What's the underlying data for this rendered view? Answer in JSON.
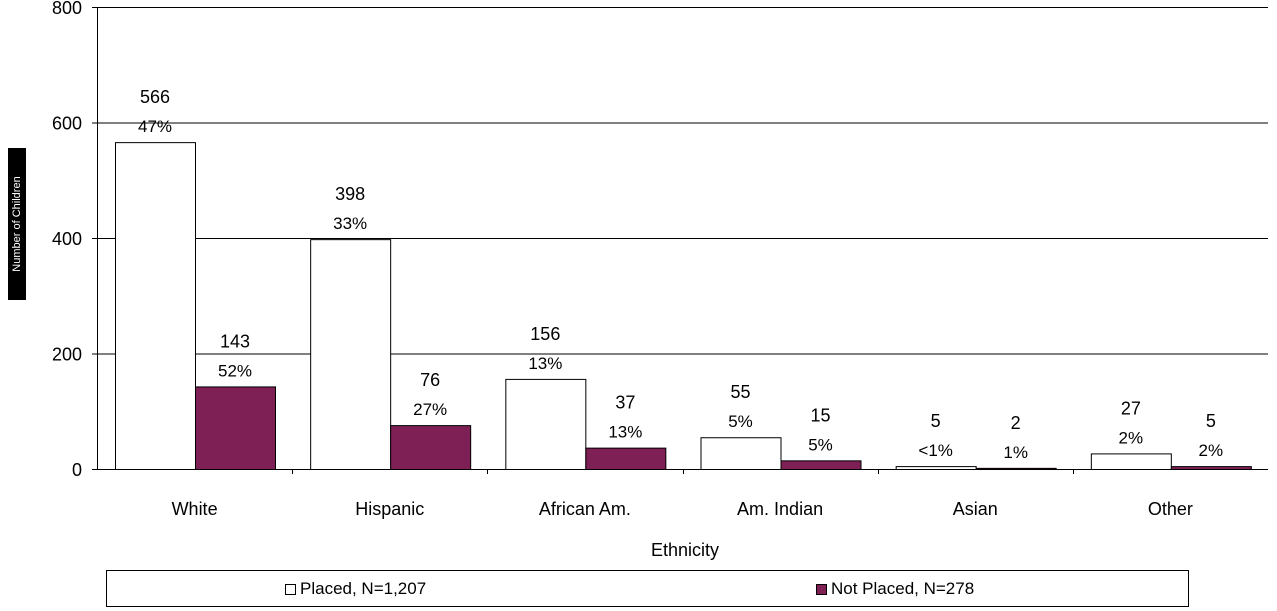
{
  "chart_data": {
    "type": "bar",
    "title": "",
    "xlabel": "Ethnicity",
    "ylabel": "Number of Children",
    "ylim": [
      0,
      800
    ],
    "yticks": [
      0,
      200,
      400,
      600,
      800
    ],
    "grid": true,
    "legend_position": "bottom",
    "categories": [
      "White",
      "Hispanic",
      "African Am.",
      "Am. Indian",
      "Asian",
      "Other"
    ],
    "series": [
      {
        "name": "Placed, N=1,207",
        "color": "#ffffff",
        "values": [
          566,
          398,
          156,
          55,
          5,
          27
        ],
        "value_labels": [
          "566",
          "398",
          "156",
          "55",
          "5",
          "27"
        ],
        "percent_labels": [
          "47%",
          "33%",
          "13%",
          "5%",
          "<1%",
          "2%"
        ]
      },
      {
        "name": "Not Placed, N=278",
        "color": "#7e1f56",
        "values": [
          143,
          76,
          37,
          15,
          2,
          5
        ],
        "value_labels": [
          "143",
          "76",
          "37",
          "15",
          "2",
          "5"
        ],
        "percent_labels": [
          "52%",
          "27%",
          "13%",
          "5%",
          "1%",
          "2%"
        ]
      }
    ]
  }
}
